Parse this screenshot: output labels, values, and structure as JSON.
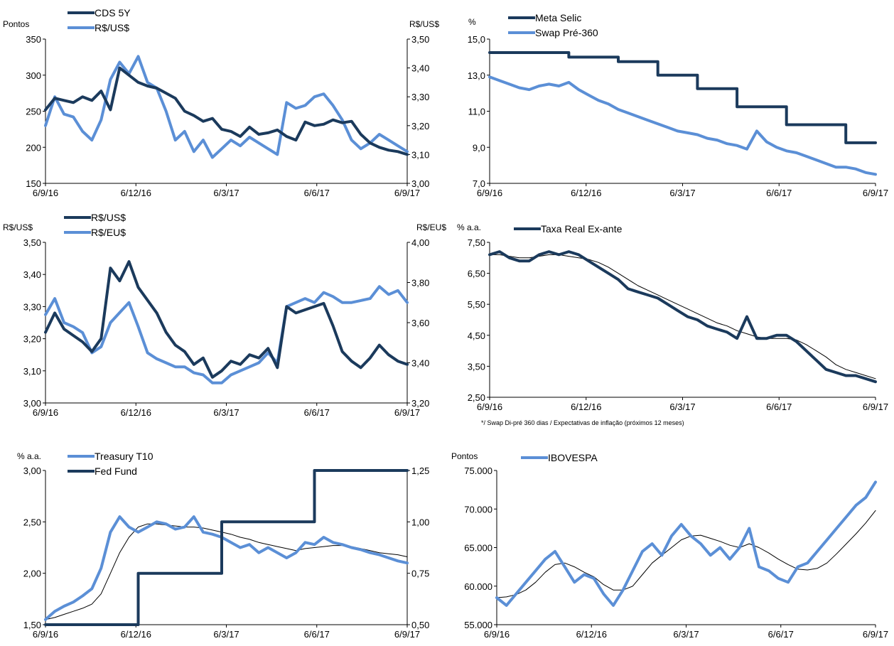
{
  "palette": {
    "dark": "#1b3a5c",
    "light": "#5b8fd6",
    "black": "#000000"
  },
  "x_ticks": [
    "6/9/16",
    "6/12/16",
    "6/3/17",
    "6/6/17",
    "6/9/17"
  ],
  "chart_data": [
    {
      "id": "cds",
      "type": "line",
      "xlabel": "",
      "ylabel": "",
      "left_unit": "Pontos",
      "right_unit": "R$/US$",
      "left_ticks": [
        "350",
        "300",
        "250",
        "200",
        "150"
      ],
      "right_ticks": [
        "3,50",
        "3,40",
        "3,30",
        "3,20",
        "3,10",
        "3,00"
      ],
      "ylim_left": [
        150,
        350
      ],
      "ylim_right": [
        3.0,
        3.5
      ],
      "series": [
        {
          "name": "CDS 5Y",
          "axis": "left",
          "color_key": "dark",
          "values": [
            252,
            268,
            265,
            262,
            270,
            265,
            278,
            252,
            310,
            300,
            290,
            285,
            282,
            275,
            268,
            250,
            244,
            236,
            240,
            225,
            222,
            215,
            228,
            218,
            220,
            224,
            215,
            210,
            235,
            230,
            232,
            238,
            234,
            236,
            218,
            206,
            200,
            196,
            194,
            190
          ]
        },
        {
          "name": "R$/US$",
          "axis": "right",
          "color_key": "light",
          "values": [
            3.2,
            3.3,
            3.24,
            3.23,
            3.18,
            3.15,
            3.22,
            3.36,
            3.42,
            3.38,
            3.44,
            3.35,
            3.33,
            3.25,
            3.15,
            3.18,
            3.11,
            3.15,
            3.09,
            3.12,
            3.15,
            3.13,
            3.16,
            3.14,
            3.12,
            3.1,
            3.28,
            3.26,
            3.27,
            3.3,
            3.31,
            3.27,
            3.22,
            3.15,
            3.12,
            3.14,
            3.17,
            3.15,
            3.13,
            3.11
          ]
        }
      ]
    },
    {
      "id": "selic",
      "type": "line",
      "xlabel": "",
      "ylabel": "",
      "left_unit": "%",
      "right_unit": "",
      "left_ticks": [
        "15,0",
        "13,0",
        "11,0",
        "9,0",
        "7,0"
      ],
      "right_ticks": [],
      "ylim_left": [
        7.0,
        15.0
      ],
      "series": [
        {
          "name": "Meta Selic",
          "axis": "left",
          "color_key": "dark",
          "step": true,
          "values": [
            14.25,
            14.25,
            14.25,
            14.25,
            14.25,
            14.25,
            14.25,
            14.25,
            14.0,
            14.0,
            14.0,
            14.0,
            14.0,
            13.75,
            13.75,
            13.75,
            13.75,
            13.0,
            13.0,
            13.0,
            13.0,
            12.25,
            12.25,
            12.25,
            12.25,
            11.25,
            11.25,
            11.25,
            11.25,
            11.25,
            10.25,
            10.25,
            10.25,
            10.25,
            10.25,
            10.25,
            9.25,
            9.25,
            9.25,
            9.25
          ]
        },
        {
          "name": "Swap Pré-360",
          "axis": "left",
          "color_key": "light",
          "values": [
            12.9,
            12.7,
            12.5,
            12.3,
            12.2,
            12.4,
            12.5,
            12.4,
            12.6,
            12.2,
            11.9,
            11.6,
            11.4,
            11.1,
            10.9,
            10.7,
            10.5,
            10.3,
            10.1,
            9.9,
            9.8,
            9.7,
            9.5,
            9.4,
            9.2,
            9.1,
            8.9,
            9.9,
            9.3,
            9.0,
            8.8,
            8.7,
            8.5,
            8.3,
            8.1,
            7.9,
            7.9,
            7.8,
            7.6,
            7.5
          ]
        }
      ]
    },
    {
      "id": "fx",
      "type": "line",
      "xlabel": "",
      "ylabel": "",
      "left_unit": "R$/US$",
      "right_unit": "R$/EU$",
      "left_ticks": [
        "3,50",
        "3,40",
        "3,30",
        "3,20",
        "3,10",
        "3,00"
      ],
      "right_ticks": [
        "4,00",
        "3,80",
        "3,60",
        "3,40",
        "3,20"
      ],
      "ylim_left": [
        3.0,
        3.5
      ],
      "ylim_right": [
        3.2,
        4.0
      ],
      "series": [
        {
          "name": "R$/US$",
          "axis": "left",
          "color_key": "dark",
          "values": [
            3.22,
            3.28,
            3.23,
            3.21,
            3.19,
            3.16,
            3.2,
            3.42,
            3.38,
            3.44,
            3.36,
            3.32,
            3.28,
            3.22,
            3.18,
            3.16,
            3.12,
            3.14,
            3.08,
            3.1,
            3.13,
            3.12,
            3.15,
            3.14,
            3.17,
            3.11,
            3.3,
            3.28,
            3.29,
            3.3,
            3.31,
            3.24,
            3.16,
            3.13,
            3.11,
            3.14,
            3.18,
            3.15,
            3.13,
            3.12
          ]
        },
        {
          "name": "R$/EU$",
          "axis": "right",
          "color_key": "light",
          "values": [
            3.64,
            3.72,
            3.6,
            3.58,
            3.55,
            3.45,
            3.48,
            3.6,
            3.65,
            3.7,
            3.58,
            3.45,
            3.42,
            3.4,
            3.38,
            3.38,
            3.35,
            3.34,
            3.3,
            3.3,
            3.34,
            3.36,
            3.38,
            3.4,
            3.45,
            3.4,
            3.68,
            3.7,
            3.72,
            3.7,
            3.75,
            3.73,
            3.7,
            3.7,
            3.71,
            3.72,
            3.78,
            3.74,
            3.76,
            3.7
          ]
        }
      ]
    },
    {
      "id": "real_rate",
      "type": "line",
      "xlabel": "",
      "ylabel": "",
      "left_unit": "% a.a.",
      "right_unit": "",
      "left_ticks": [
        "7,50",
        "6,50",
        "5,50",
        "4,50",
        "3,50",
        "2,50"
      ],
      "right_ticks": [],
      "ylim_left": [
        2.5,
        7.5
      ],
      "footnote": "*/ Swap Di-pré 360 dias / Expectativas de inflação (próximos 12 meses)",
      "series": [
        {
          "name": "Taxa Real Ex-ante",
          "axis": "left",
          "color_key": "dark",
          "values": [
            7.1,
            7.2,
            7.0,
            6.9,
            6.9,
            7.1,
            7.2,
            7.1,
            7.2,
            7.1,
            6.9,
            6.7,
            6.5,
            6.3,
            6.0,
            5.9,
            5.8,
            5.7,
            5.5,
            5.3,
            5.1,
            5.0,
            4.8,
            4.7,
            4.6,
            4.4,
            5.1,
            4.4,
            4.4,
            4.5,
            4.5,
            4.3,
            4.0,
            3.7,
            3.4,
            3.3,
            3.2,
            3.2,
            3.1,
            3.0
          ]
        },
        {
          "name": "",
          "axis": "left",
          "color_key": "black",
          "thin": true,
          "values": [
            7.1,
            7.1,
            7.05,
            7.0,
            7.0,
            7.05,
            7.1,
            7.1,
            7.05,
            7.0,
            6.95,
            6.85,
            6.7,
            6.5,
            6.3,
            6.1,
            5.95,
            5.8,
            5.65,
            5.5,
            5.35,
            5.2,
            5.05,
            4.9,
            4.8,
            4.65,
            4.55,
            4.45,
            4.4,
            4.4,
            4.4,
            4.35,
            4.2,
            4.0,
            3.8,
            3.55,
            3.4,
            3.3,
            3.2,
            3.1
          ]
        }
      ]
    },
    {
      "id": "treasury",
      "type": "line",
      "xlabel": "",
      "ylabel": "",
      "left_unit": "% a.a.",
      "right_unit": "",
      "left_ticks": [
        "3,00",
        "2,50",
        "2,00",
        "1,50"
      ],
      "right_ticks": [
        "1,25",
        "1,00",
        "0,75",
        "0,50"
      ],
      "ylim_left": [
        1.5,
        3.0
      ],
      "ylim_right": [
        0.5,
        1.25
      ],
      "series": [
        {
          "name": "Treasury T10",
          "axis": "left",
          "color_key": "light",
          "values": [
            1.55,
            1.63,
            1.68,
            1.72,
            1.78,
            1.85,
            2.05,
            2.4,
            2.55,
            2.45,
            2.4,
            2.45,
            2.5,
            2.48,
            2.43,
            2.45,
            2.55,
            2.4,
            2.38,
            2.35,
            2.3,
            2.25,
            2.28,
            2.2,
            2.25,
            2.2,
            2.15,
            2.2,
            2.3,
            2.28,
            2.35,
            2.3,
            2.28,
            2.25,
            2.23,
            2.2,
            2.18,
            2.15,
            2.12,
            2.1
          ]
        },
        {
          "name": "Fed Fund",
          "axis": "right",
          "color_key": "dark",
          "step": true,
          "values": [
            0.5,
            0.5,
            0.5,
            0.5,
            0.5,
            0.5,
            0.5,
            0.5,
            0.5,
            0.5,
            0.75,
            0.75,
            0.75,
            0.75,
            0.75,
            0.75,
            0.75,
            0.75,
            0.75,
            1.0,
            1.0,
            1.0,
            1.0,
            1.0,
            1.0,
            1.0,
            1.0,
            1.0,
            1.0,
            1.25,
            1.25,
            1.25,
            1.25,
            1.25,
            1.25,
            1.25,
            1.25,
            1.25,
            1.25,
            1.25
          ]
        },
        {
          "name": "",
          "axis": "left",
          "color_key": "black",
          "thin": true,
          "values": [
            1.55,
            1.57,
            1.6,
            1.63,
            1.66,
            1.7,
            1.8,
            2.0,
            2.2,
            2.35,
            2.45,
            2.48,
            2.48,
            2.47,
            2.46,
            2.45,
            2.45,
            2.44,
            2.42,
            2.4,
            2.38,
            2.35,
            2.33,
            2.3,
            2.28,
            2.26,
            2.24,
            2.22,
            2.24,
            2.25,
            2.26,
            2.27,
            2.27,
            2.26,
            2.24,
            2.22,
            2.2,
            2.19,
            2.18,
            2.16
          ]
        }
      ]
    },
    {
      "id": "ibovespa",
      "type": "line",
      "xlabel": "",
      "ylabel": "",
      "left_unit": "Pontos",
      "right_unit": "",
      "left_ticks": [
        "75.000",
        "70.000",
        "65.000",
        "60.000",
        "55.000"
      ],
      "right_ticks": [],
      "ylim_left": [
        55000,
        75000
      ],
      "series": [
        {
          "name": "IBOVESPA",
          "axis": "left",
          "color_key": "light",
          "values": [
            58500,
            57500,
            59000,
            60500,
            62000,
            63500,
            64500,
            62500,
            60500,
            61500,
            61000,
            59000,
            57500,
            59500,
            62000,
            64500,
            65500,
            64000,
            66500,
            68000,
            66500,
            65500,
            64000,
            65000,
            63500,
            65000,
            67500,
            62500,
            62000,
            61000,
            60500,
            62500,
            63000,
            64500,
            66000,
            67500,
            69000,
            70500,
            71500,
            73500
          ]
        },
        {
          "name": "",
          "axis": "left",
          "color_key": "black",
          "thin": true,
          "values": [
            58500,
            58600,
            58900,
            59500,
            60500,
            61800,
            62800,
            63000,
            62500,
            61800,
            61200,
            60200,
            59500,
            59500,
            60000,
            61500,
            63000,
            64000,
            65000,
            66000,
            66500,
            66600,
            66200,
            65800,
            65300,
            65000,
            65500,
            65000,
            64300,
            63500,
            62800,
            62200,
            62100,
            62300,
            63000,
            64200,
            65500,
            66800,
            68200,
            69800
          ]
        }
      ]
    }
  ]
}
